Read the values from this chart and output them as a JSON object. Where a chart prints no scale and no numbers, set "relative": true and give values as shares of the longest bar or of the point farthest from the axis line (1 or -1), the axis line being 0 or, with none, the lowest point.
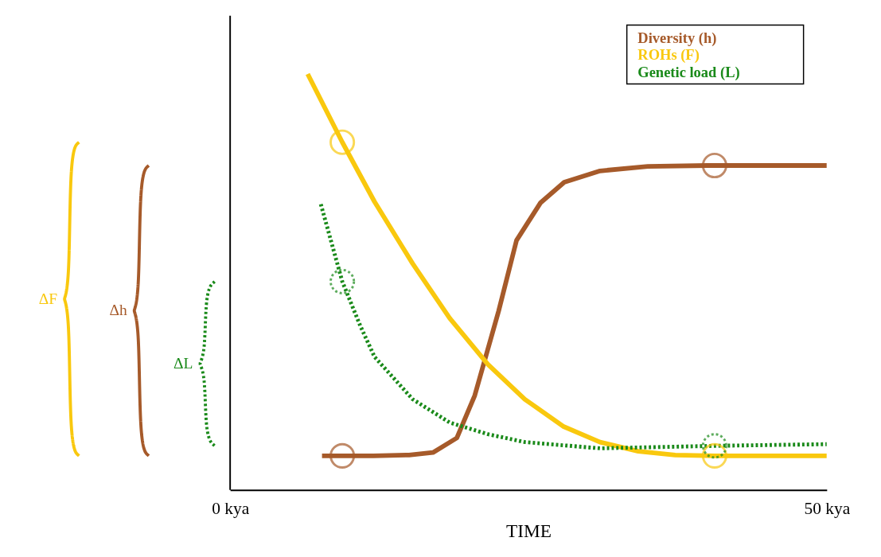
{
  "chart_data": {
    "type": "line",
    "relative": true,
    "xlabel": "TIME",
    "xlim": [
      0,
      50
    ],
    "xticks": [
      {
        "value": 0,
        "label": "0 kya"
      },
      {
        "value": 50,
        "label": "50 kya"
      }
    ],
    "legend": "top right",
    "grid": false,
    "series": [
      {
        "name": "Diversity (h)",
        "color": "#a65a2a",
        "line_style": "solid",
        "marker": "none",
        "x": [
          7.7,
          12,
          15,
          17,
          19,
          20.5,
          22.5,
          24,
          26,
          28,
          31,
          35,
          40,
          50
        ],
        "values": [
          0.082,
          0.082,
          0.084,
          0.09,
          0.125,
          0.227,
          0.43,
          0.6,
          0.69,
          0.74,
          0.767,
          0.778,
          0.78,
          0.78
        ]
      },
      {
        "name": "ROHs (F)",
        "color": "#f9c80e",
        "line_style": "solid",
        "marker": "none",
        "x": [
          6.5,
          9.4,
          12.1,
          15.3,
          18.4,
          21.6,
          24.7,
          27.9,
          31,
          34.2,
          37.3,
          40.6,
          50
        ],
        "values": [
          1.0,
          0.836,
          0.693,
          0.544,
          0.413,
          0.302,
          0.218,
          0.153,
          0.115,
          0.093,
          0.084,
          0.082,
          0.082
        ]
      },
      {
        "name": "Genetic load (L)",
        "color": "#1a8a1a",
        "line_style": "dotted",
        "marker": "none",
        "x": [
          7.6,
          9.4,
          10.9,
          12.1,
          15.3,
          18.4,
          21.6,
          24.7,
          31,
          40.6,
          50
        ],
        "values": [
          0.687,
          0.501,
          0.395,
          0.32,
          0.218,
          0.162,
          0.134,
          0.115,
          0.1,
          0.106,
          0.11
        ]
      },
      {
        "type": "scatter",
        "color": "#f9c80e",
        "line_style": "solid",
        "marker": "circle",
        "x": [
          9.4,
          40.6
        ],
        "values": [
          0.836,
          0.082
        ]
      },
      {
        "type": "scatter",
        "color": "#a65a2a",
        "line_style": "solid",
        "marker": "circle",
        "x": [
          9.4,
          40.6
        ],
        "values": [
          0.082,
          0.78
        ]
      },
      {
        "type": "scatter",
        "color": "#1a8a1a",
        "line_style": "dotted",
        "marker": "circle",
        "x": [
          9.4,
          40.6
        ],
        "values": [
          0.501,
          0.106
        ]
      }
    ],
    "annotations": [
      "ΔF",
      "Δh",
      "ΔL"
    ]
  }
}
